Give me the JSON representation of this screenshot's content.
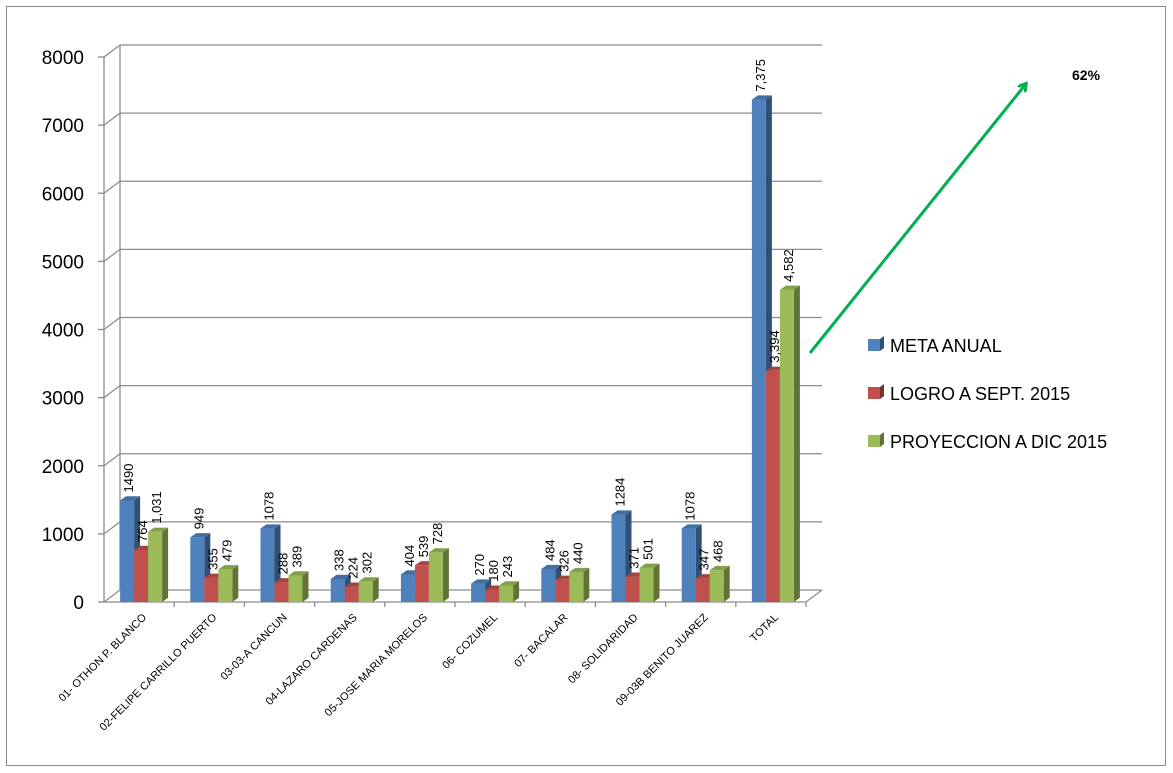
{
  "chart_data": {
    "type": "bar",
    "categories": [
      "01- OTHON P. BLANCO",
      "02-FELIPE CARRILLO PUERTO",
      "03-03-A CANCUN",
      "04-LAZARO CARDENAS",
      "05-JOSE MARIA MORELOS",
      "06- COZUMEL",
      "07- BACALAR",
      "08- SOLIDARIDAD",
      "09-03B BENITO JUAREZ",
      "TOTAL"
    ],
    "series": [
      {
        "name": "META ANUAL",
        "color": "#4f81bd",
        "values": [
          1490,
          949,
          1078,
          338,
          404,
          270,
          484,
          1284,
          1078,
          7375
        ],
        "labels": [
          "1490",
          "949",
          "1078",
          "338",
          "404",
          "270",
          "484",
          "1284",
          "1078",
          "7,375"
        ]
      },
      {
        "name": "LOGRO A SEPT. 2015",
        "color": "#c0504d",
        "values": [
          764,
          355,
          288,
          224,
          539,
          180,
          326,
          371,
          347,
          3394
        ],
        "labels": [
          "764",
          "355",
          "288",
          "224",
          "539",
          "180",
          "326",
          "371",
          "347",
          "3,394"
        ]
      },
      {
        "name": "PROYECCION A DIC 2015",
        "color": "#9bbb59",
        "values": [
          1031,
          479,
          389,
          302,
          728,
          243,
          440,
          501,
          468,
          4582
        ],
        "labels": [
          "1,031",
          "479",
          "389",
          "302",
          "728",
          "243",
          "440",
          "501",
          "468",
          "4,582"
        ]
      }
    ],
    "yticks": [
      "0",
      "1000",
      "2000",
      "3000",
      "4000",
      "5000",
      "6000",
      "7000",
      "8000"
    ],
    "ylim": [
      0,
      8000
    ],
    "grid": true,
    "legend_position": "right",
    "annotation": {
      "text": "62%",
      "arrow_color": "#00b050"
    }
  }
}
